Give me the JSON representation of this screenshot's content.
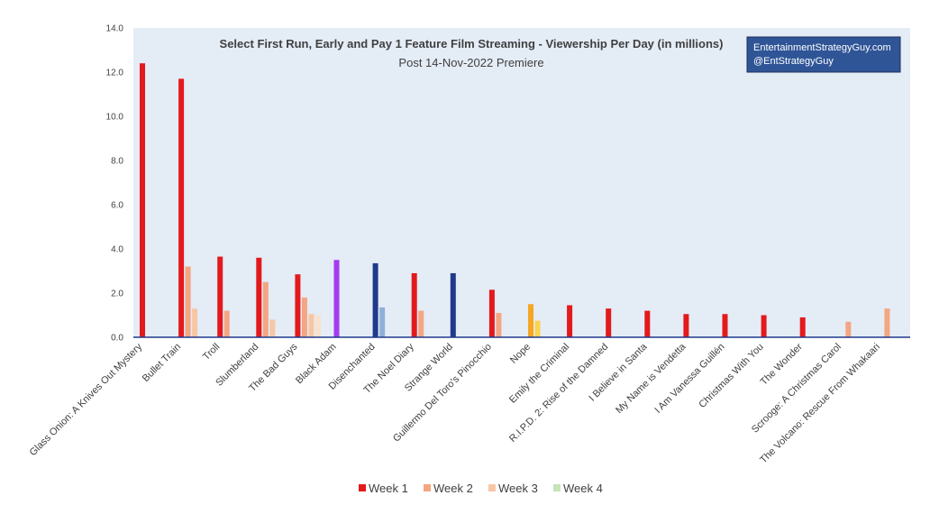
{
  "chart_data": {
    "type": "bar",
    "title": "Select First Run, Early and Pay 1 Feature Film Streaming - Viewership Per Day (in millions)",
    "subtitle": "Post 14-Nov-2022 Premiere",
    "watermark": [
      "EntertainmentStrategyGuy.com",
      "@EntStrategyGuy"
    ],
    "ylim": [
      0,
      14
    ],
    "yticks": [
      "0.0",
      "2.0",
      "4.0",
      "6.0",
      "8.0",
      "10.0",
      "12.0",
      "14.0"
    ],
    "legend_position": "bottom",
    "categories": [
      "Glass Onion: A Knives Out Mystery",
      "Bullet Train",
      "Troll",
      "Slumberland",
      "The Bad Guys",
      "Black Adam",
      "Disenchanted",
      "The Noel Diary",
      "Strange World",
      "Guillermo Del Toro's Pinocchio",
      "Nope",
      "Emily the Criminal",
      "R.I.P.D. 2: Rise of the Damned",
      "I Believe in Santa",
      "My Name is Vendetta",
      "I Am Vanessa Guillén",
      "Christmas With You",
      "The Wonder",
      "Scrooge: A Christmas Carol",
      "The Volcano: Rescue From Whakaari"
    ],
    "series": [
      {
        "name": "Week 1",
        "legend_color": "#e31a1c",
        "values": [
          12.4,
          11.7,
          3.65,
          3.6,
          2.85,
          3.5,
          3.35,
          2.9,
          2.9,
          2.15,
          1.5,
          1.45,
          1.3,
          1.2,
          1.05,
          1.05,
          1.0,
          0.9,
          null,
          null
        ],
        "colors": [
          "#e31a1c",
          "#e31a1c",
          "#e31a1c",
          "#e31a1c",
          "#e31a1c",
          "#a53bf0",
          "#1f3a8a",
          "#e31a1c",
          "#1f3a8a",
          "#e31a1c",
          "#f5a623",
          "#e31a1c",
          "#e31a1c",
          "#e31a1c",
          "#e31a1c",
          "#e31a1c",
          "#e31a1c",
          "#e31a1c",
          "#e31a1c",
          "#e31a1c"
        ]
      },
      {
        "name": "Week 2",
        "legend_color": "#f4a582",
        "values": [
          null,
          3.2,
          1.2,
          2.5,
          1.8,
          null,
          1.35,
          1.2,
          null,
          1.1,
          0.75,
          null,
          null,
          null,
          null,
          null,
          null,
          null,
          0.7,
          1.3
        ],
        "colors": [
          "#f4a582",
          "#f4a582",
          "#f4a582",
          "#f4a582",
          "#f4a582",
          "#f4a582",
          "#8fb0d9",
          "#f4a582",
          "#f4a582",
          "#f4a582",
          "#fcd34d",
          "#f4a582",
          "#f4a582",
          "#f4a582",
          "#f4a582",
          "#f4a582",
          "#f4a582",
          "#f4a582",
          "#f4a582",
          "#f4a582"
        ]
      },
      {
        "name": "Week 3",
        "legend_color": "#f7c6a5",
        "values": [
          null,
          1.3,
          null,
          0.8,
          1.05,
          null,
          null,
          null,
          null,
          null,
          null,
          null,
          null,
          null,
          null,
          null,
          null,
          null,
          null,
          null
        ],
        "colors": [
          "#f7c6a5",
          "#f7c6a5",
          "#f7c6a5",
          "#f7c6a5",
          "#f7c6a5",
          "#f7c6a5",
          "#f7c6a5",
          "#f7c6a5",
          "#f7c6a5",
          "#f7c6a5",
          "#f7c6a5",
          "#f7c6a5",
          "#f7c6a5",
          "#f7c6a5",
          "#f7c6a5",
          "#f7c6a5",
          "#f7c6a5",
          "#f7c6a5",
          "#f7c6a5",
          "#f7c6a5"
        ]
      },
      {
        "name": "Week 4",
        "legend_color": "#c7e3b8",
        "values": [
          null,
          null,
          null,
          null,
          1.0,
          null,
          null,
          null,
          null,
          null,
          null,
          null,
          null,
          null,
          null,
          null,
          null,
          null,
          null,
          null
        ],
        "colors": [
          "#fbe0cc",
          "#fbe0cc",
          "#fbe0cc",
          "#fbe0cc",
          "#fbe0cc",
          "#fbe0cc",
          "#fbe0cc",
          "#fbe0cc",
          "#fbe0cc",
          "#fbe0cc",
          "#fbe0cc",
          "#fbe0cc",
          "#fbe0cc",
          "#fbe0cc",
          "#fbe0cc",
          "#fbe0cc",
          "#fbe0cc",
          "#fbe0cc",
          "#fbe0cc",
          "#fbe0cc"
        ]
      }
    ]
  },
  "colors": {
    "plot_background": "#e4ecf6",
    "axis_line": "#1f3a8a",
    "watermark_background": "#2f5597"
  }
}
